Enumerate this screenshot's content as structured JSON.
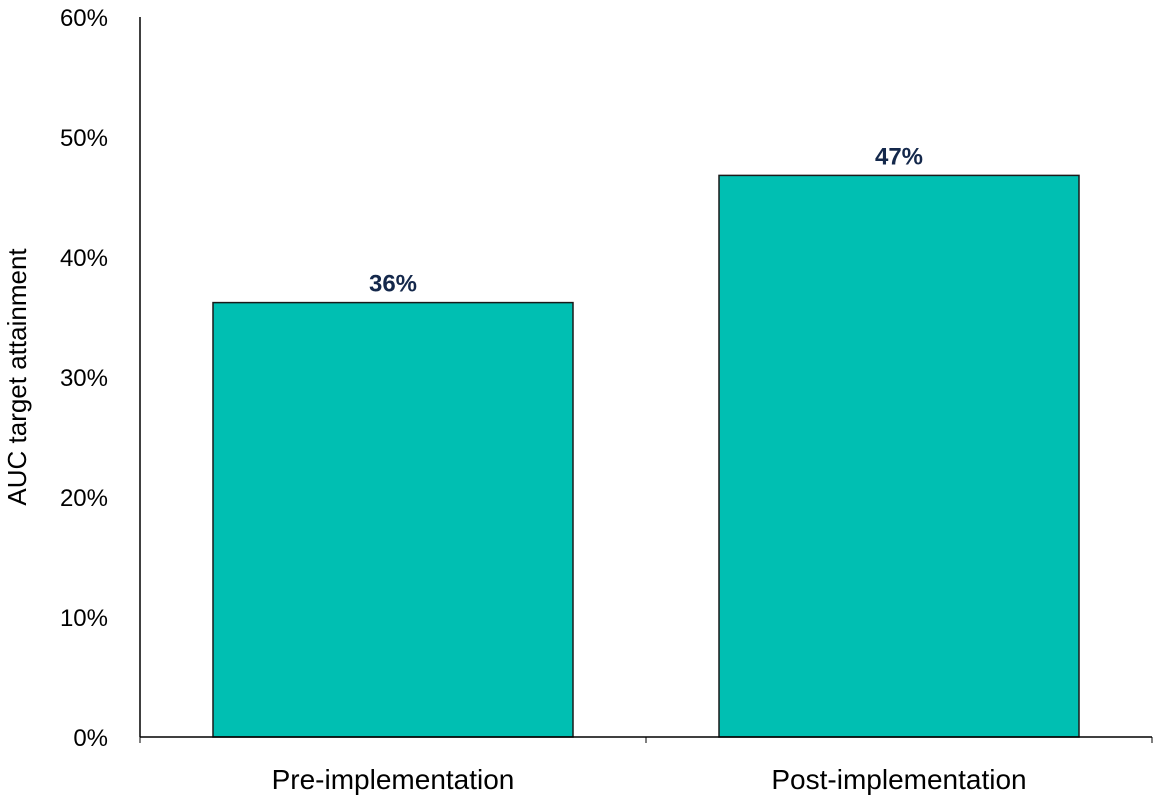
{
  "chart_data": {
    "type": "bar",
    "title": "",
    "xlabel": "",
    "ylabel": "AUC target attainment",
    "categories": [
      "Pre-implementation",
      "Post-implementation"
    ],
    "values": [
      36.2,
      46.8
    ],
    "data_labels": [
      "36%",
      "47%"
    ],
    "ylim": [
      0,
      60
    ],
    "y_ticks": [
      0,
      10,
      20,
      30,
      40,
      50,
      60
    ],
    "y_tick_labels": [
      "0%",
      "10%",
      "20%",
      "30%",
      "40%",
      "50%",
      "60%"
    ],
    "grid": false,
    "legend": "none"
  },
  "colors": {
    "bar_fill": "#00BFB2",
    "bar_stroke": "#1a1a1a",
    "data_label": "#14284B",
    "axis": "#000000"
  }
}
